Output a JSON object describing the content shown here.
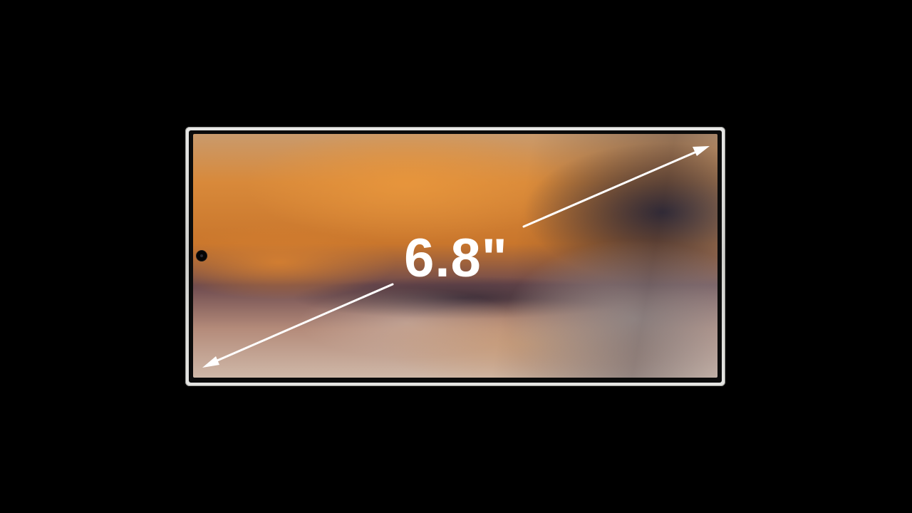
{
  "display": {
    "diagonal_label": "6.8\"",
    "diagonal_value": 6.8,
    "unit": "inch"
  },
  "colors": {
    "background": "#000000",
    "frame": "#dcdcda",
    "label": "#ffffff",
    "arrow": "#ffffff"
  },
  "icons": {
    "camera": "front-camera-hole",
    "arrow": "double-headed-diagonal-arrow"
  }
}
